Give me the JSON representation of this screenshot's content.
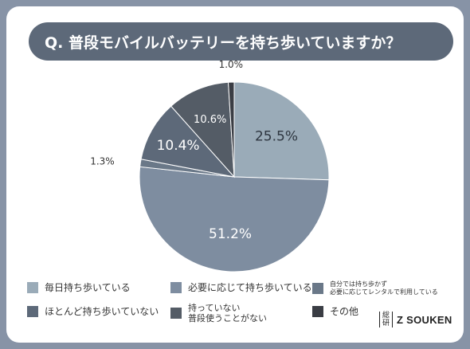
{
  "title": "Q. 普段モバイルバッテリーを持ち歩いていますか？",
  "chart_data": {
    "type": "pie",
    "title": "Q. 普段モバイルバッテリーを持ち歩いていますか？",
    "slices": [
      {
        "label": "毎日持ち歩いている",
        "value": 25.5,
        "value_label": "25.5%",
        "color": "#9aabb8"
      },
      {
        "label": "必要に応じて持ち歩いている",
        "value": 51.2,
        "value_label": "51.2%",
        "color": "#7e8da0"
      },
      {
        "label": "自分では持ち歩かず 必要に応じてレンタルで利用している",
        "value": 1.3,
        "value_label": "1.3%",
        "color": "#6a7888"
      },
      {
        "label": "ほとんど持ち歩いていない",
        "value": 10.4,
        "value_label": "10.4%",
        "color": "#5d6979"
      },
      {
        "label": "持っていない 普段使うことがない",
        "value": 10.6,
        "value_label": "10.6%",
        "color": "#545c66"
      },
      {
        "label": "その他",
        "value": 1.0,
        "value_label": "1.0%",
        "color": "#3a3d44"
      }
    ],
    "start": "12 o'clock",
    "direction": "clockwise",
    "legend": "bottom"
  },
  "legend": {
    "item1": "毎日持ち歩いている",
    "item2": "必要に応じて持ち歩いている",
    "item3_line1": "自分では持ち歩かず",
    "item3_line2": "必要に応じてレンタルで利用している",
    "item4": "ほとんど持ち歩いていない",
    "item5_line1": "持っていない",
    "item5_line2": "普段使うことがない",
    "item6": "その他"
  },
  "brand": {
    "mark_top": "総",
    "mark_bottom": "研",
    "name": "Z SOUKEN"
  }
}
